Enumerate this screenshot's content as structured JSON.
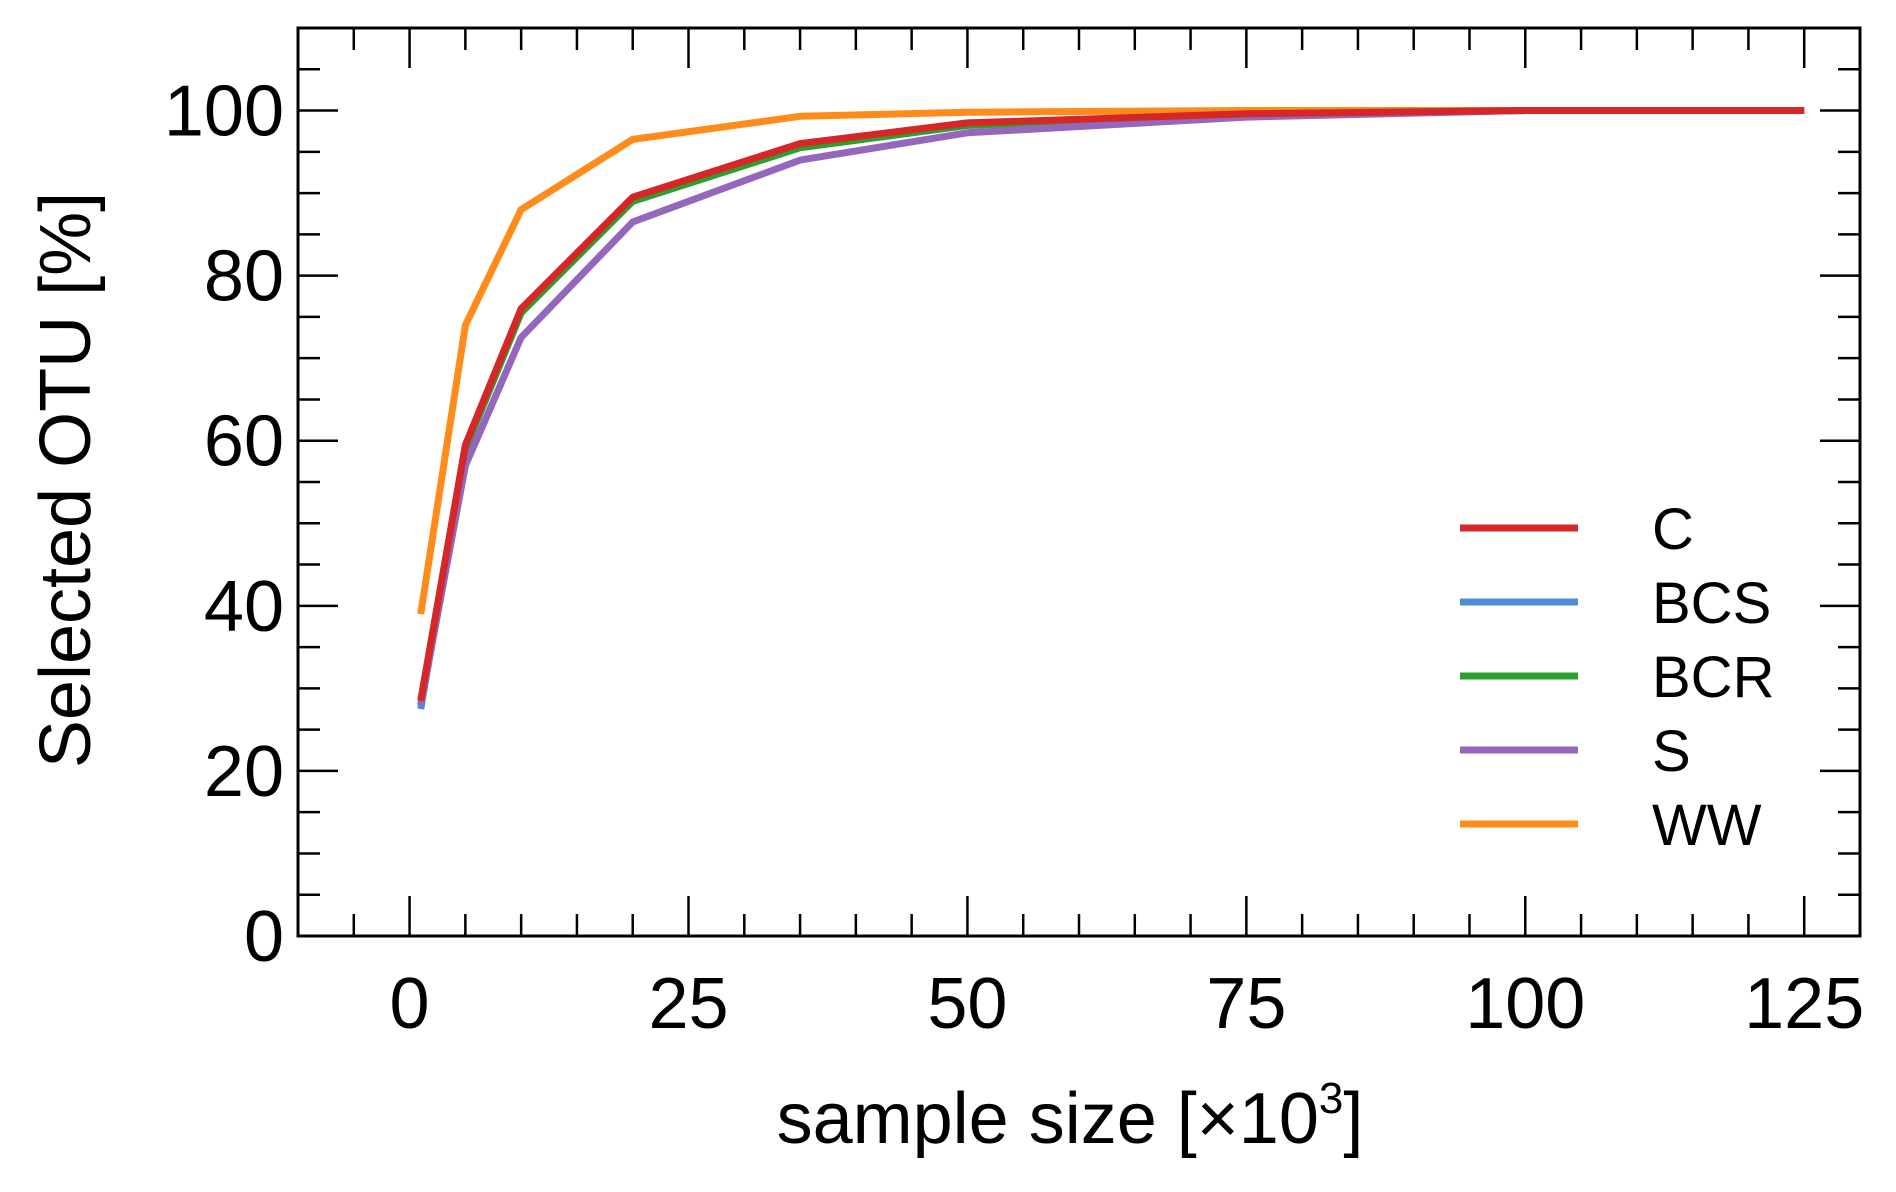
{
  "chart_data": {
    "type": "line",
    "title": "",
    "xlabel": "sample size [×10",
    "xlabel_sup": "3",
    "xlabel_end": "]",
    "ylabel": "Selected OTU [%]",
    "xlim": [
      -10,
      130
    ],
    "ylim": [
      0,
      110
    ],
    "xticks": [
      0,
      25,
      50,
      75,
      100,
      125
    ],
    "yticks": [
      0,
      20,
      40,
      60,
      80,
      100
    ],
    "x": [
      1,
      5,
      10,
      20,
      35,
      50,
      75,
      100,
      125
    ],
    "series": [
      {
        "name": "C",
        "color": "#d62728",
        "values": [
          28.5,
          59.5,
          76,
          89.5,
          96,
          98.5,
          99.6,
          100,
          100
        ]
      },
      {
        "name": "BCS",
        "color": "#4c8ed6",
        "values": [
          27.5,
          59,
          75.5,
          89,
          95.5,
          98.2,
          99.5,
          100,
          100
        ]
      },
      {
        "name": "BCR",
        "color": "#2ca02c",
        "values": [
          28,
          59,
          75.5,
          89,
          95.5,
          98.2,
          99.5,
          100,
          100
        ]
      },
      {
        "name": "S",
        "color": "#9467bd",
        "values": [
          28,
          57,
          72.5,
          86.5,
          94,
          97.3,
          99.2,
          100,
          100
        ]
      },
      {
        "name": "WW",
        "color": "#ff8c1a",
        "values": [
          39,
          74,
          88,
          96.5,
          99.3,
          99.8,
          100,
          100,
          100
        ]
      }
    ],
    "draw_order": [
      "BCS",
      "BCR",
      "S",
      "WW",
      "C"
    ],
    "legend_position": "lower-right"
  }
}
